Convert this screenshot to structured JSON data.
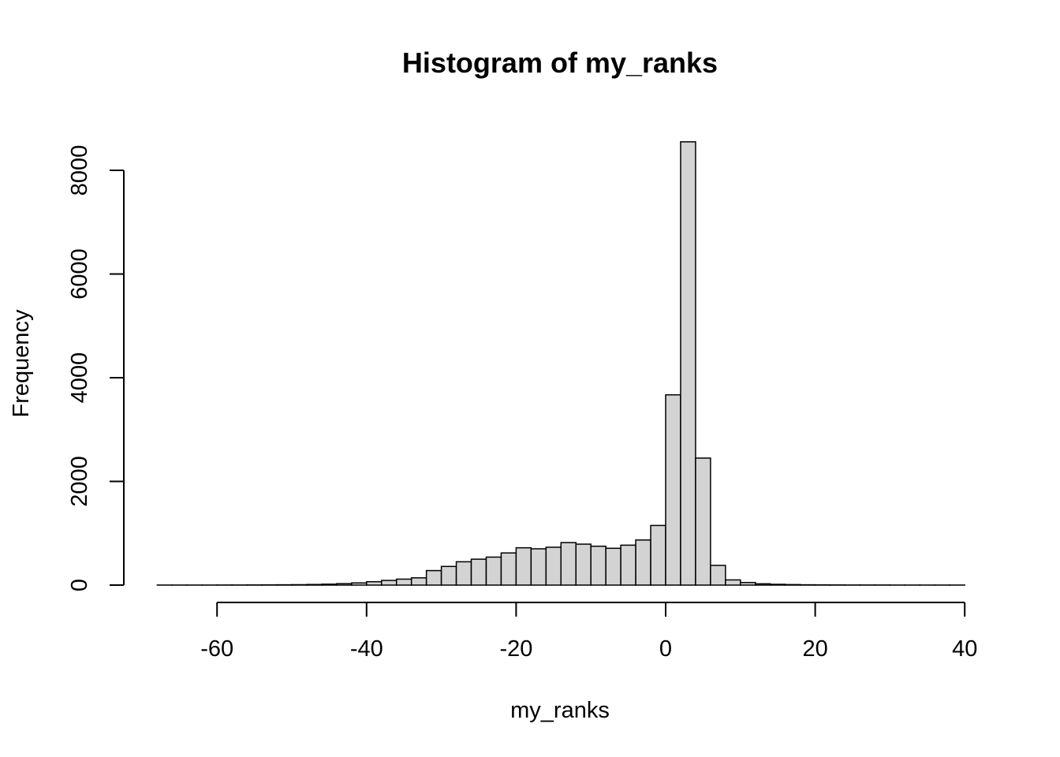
{
  "chart_data": {
    "type": "bar",
    "title": "Histogram of my_ranks",
    "xlabel": "my_ranks",
    "ylabel": "Frequency",
    "xlim": [
      -60,
      40
    ],
    "ylim": [
      0,
      8000
    ],
    "x_ticks": [
      "-60",
      "-40",
      "-20",
      "0",
      "20",
      "40"
    ],
    "y_ticks": [
      "0",
      "2000",
      "4000",
      "6000",
      "8000"
    ],
    "bin_width": 2,
    "bins_start": [
      -68,
      -66,
      -64,
      -62,
      -60,
      -58,
      -56,
      -54,
      -52,
      -50,
      -48,
      -46,
      -44,
      -42,
      -40,
      -38,
      -36,
      -34,
      -32,
      -30,
      -28,
      -26,
      -24,
      -22,
      -20,
      -18,
      -16,
      -14,
      -12,
      -10,
      -8,
      -6,
      -4,
      -2,
      0,
      2,
      4,
      6,
      8,
      10,
      12,
      14,
      16,
      18,
      20,
      22,
      24,
      26,
      28,
      30,
      32,
      34,
      36,
      38
    ],
    "values": [
      1,
      1,
      1,
      1,
      2,
      2,
      3,
      4,
      6,
      8,
      12,
      18,
      28,
      42,
      65,
      90,
      115,
      140,
      280,
      360,
      450,
      500,
      540,
      620,
      720,
      700,
      730,
      820,
      790,
      750,
      710,
      770,
      870,
      1150,
      3670,
      8550,
      2450,
      380,
      100,
      50,
      25,
      15,
      10,
      6,
      4,
      3,
      2,
      2,
      2,
      1,
      1,
      1,
      1,
      1
    ],
    "grid": false,
    "legend": "none",
    "colors": {
      "bar_fill": "#d3d3d3",
      "bar_stroke": "#000000"
    }
  }
}
